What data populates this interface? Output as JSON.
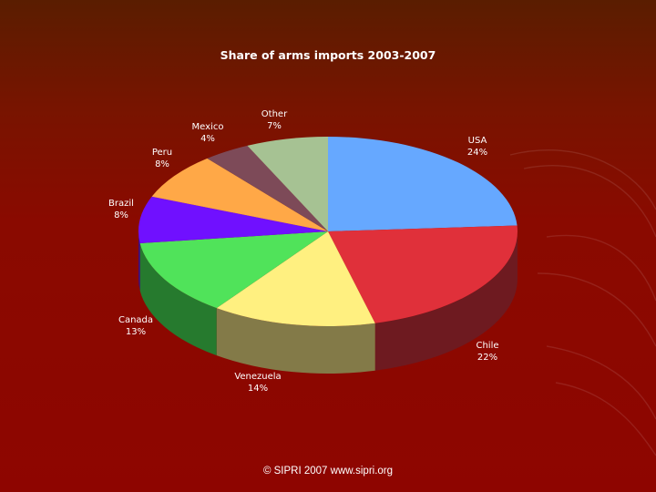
{
  "footer": {
    "text": "©  SIPRI 2007  www.sipri.org"
  },
  "chart_data": {
    "type": "pie",
    "title": "Share of arms imports 2003-2007",
    "three_d": true,
    "start_angle_deg": -90,
    "direction": "clockwise",
    "slices": [
      {
        "label": "USA",
        "value": 24,
        "value_label": "24%",
        "color": "#66a8ff",
        "side_color": "#3f6aa3"
      },
      {
        "label": "Chile",
        "value": 22,
        "value_label": "22%",
        "color": "#e0303a",
        "side_color": "#6e1a20"
      },
      {
        "label": "Venezuela",
        "value": 14,
        "value_label": "14%",
        "color": "#fff080",
        "side_color": "#837a48"
      },
      {
        "label": "Canada",
        "value": 13,
        "value_label": "13%",
        "color": "#50e35a",
        "side_color": "#267a2e"
      },
      {
        "label": "Brazil",
        "value": 8,
        "value_label": "8%",
        "color": "#7010ff",
        "side_color": "#3c0a8a"
      },
      {
        "label": "Peru",
        "value": 8,
        "value_label": "8%",
        "color": "#ffa847",
        "side_color": "#8a5a22"
      },
      {
        "label": "Mexico",
        "value": 4,
        "value_label": "4%",
        "color": "#7d4a58",
        "side_color": "#4a2a32"
      },
      {
        "label": "Other",
        "value": 7,
        "value_label": "7%",
        "color": "#a6c293",
        "side_color": "#5d6e52"
      }
    ]
  }
}
